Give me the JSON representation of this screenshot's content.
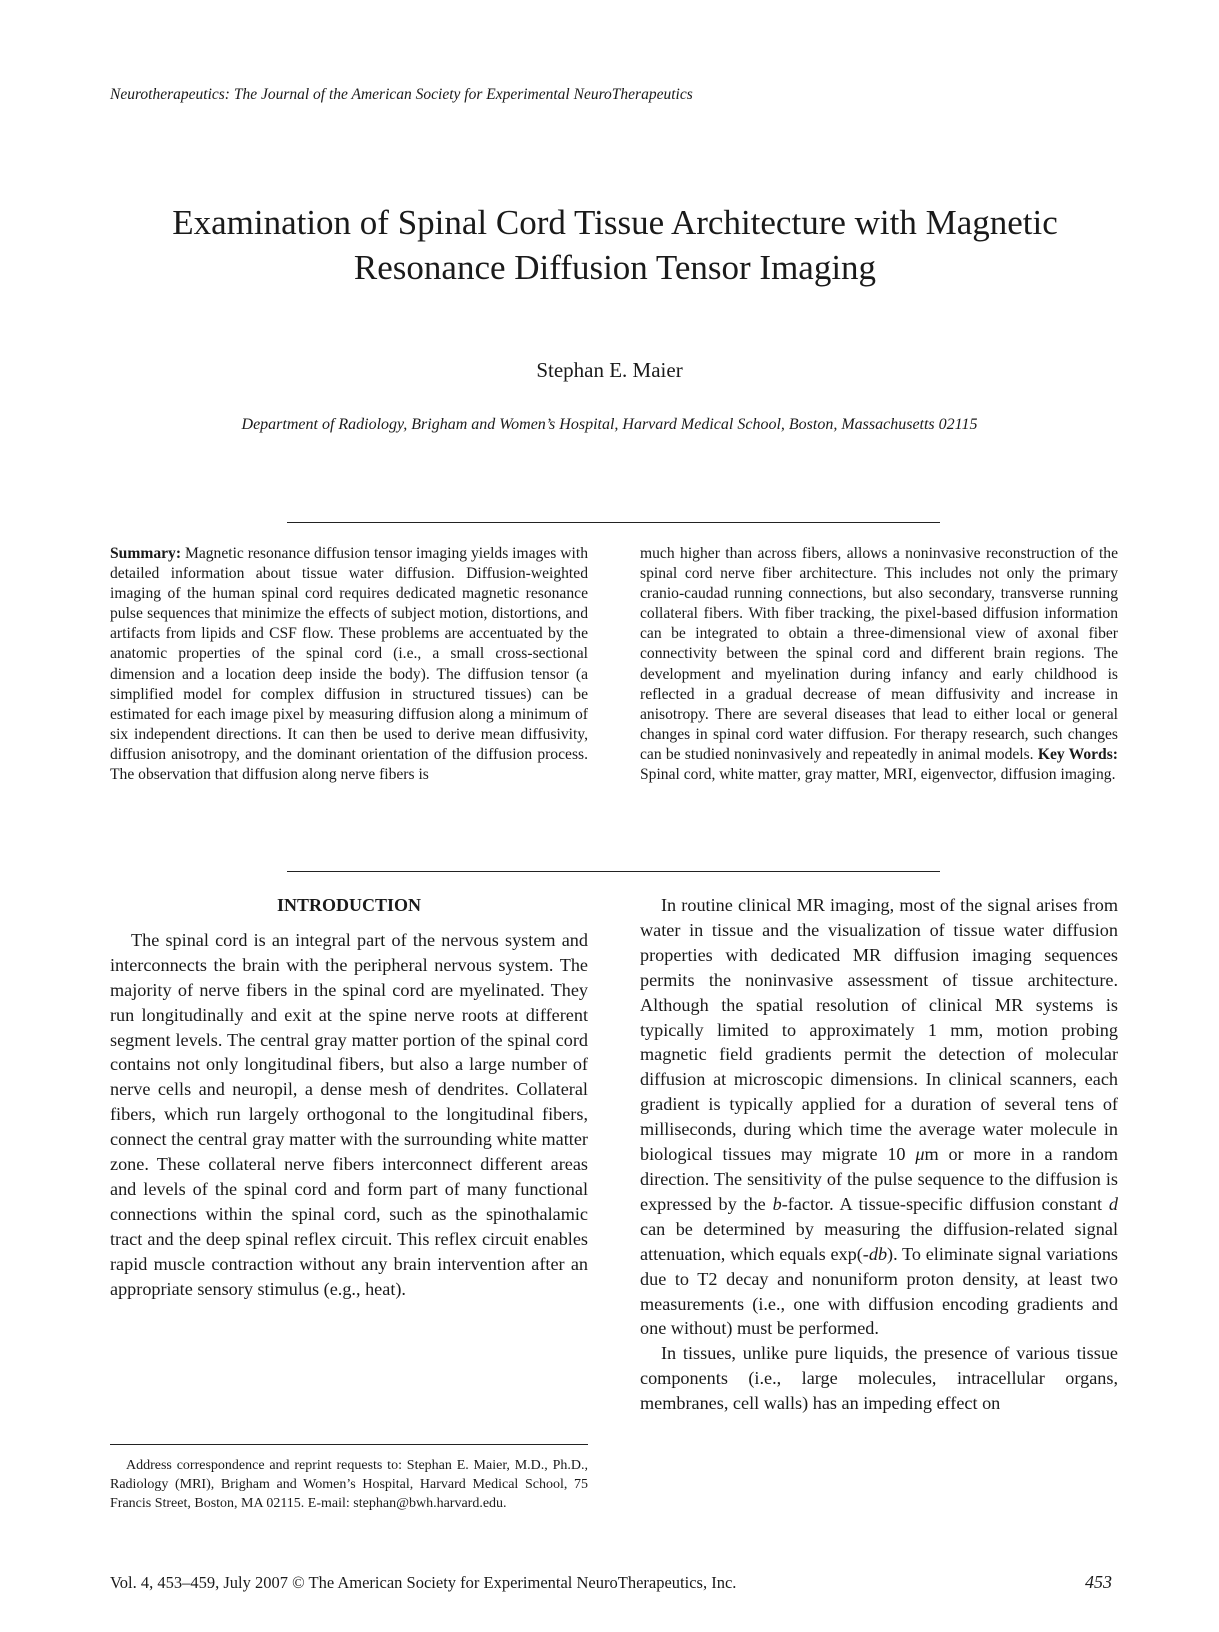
{
  "running_head": "Neurotherapeutics: The Journal of the American Society for Experimental NeuroTherapeutics",
  "title_line1": "Examination of Spinal Cord Tissue Architecture with Magnetic",
  "title_line2": "Resonance Diffusion Tensor Imaging",
  "author": "Stephan E. Maier",
  "affiliation": "Department of Radiology, Brigham and Women’s Hospital, Harvard Medical School, Boston, Massachusetts 02115",
  "summary": {
    "label": "Summary:",
    "text_col1": "Magnetic resonance diffusion tensor imaging yields images with detailed information about tissue water diffusion. Diffusion-weighted imaging of the human spinal cord requires dedicated magnetic resonance pulse sequences that minimize the effects of subject motion, distortions, and artifacts from lipids and CSF flow. These problems are accentuated by the anatomic properties of the spinal cord (i.e., a small cross-sectional dimension and a location deep inside the body). The diffusion tensor (a simplified model for complex diffusion in structured tissues) can be estimated for each image pixel by measuring diffusion along a minimum of six independent directions. It can then be used to derive mean diffusivity, diffusion anisotropy, and the dominant orientation of the diffusion process. The observation that diffusion along nerve fibers is",
    "text_col2": "much higher than across fibers, allows a noninvasive reconstruction of the spinal cord nerve fiber architecture. This includes not only the primary cranio-caudad running connections, but also secondary, transverse running collateral fibers. With fiber tracking, the pixel-based diffusion information can be integrated to obtain a three-dimensional view of axonal fiber connectivity between the spinal cord and different brain regions. The development and myelination during infancy and early childhood is reflected in a gradual decrease of mean diffusivity and increase in anisotropy. There are several diseases that lead to either local or general changes in spinal cord water diffusion. For therapy research, such changes can be studied noninvasively and repeatedly in animal models.",
    "keywords_label": "Key Words:",
    "keywords": "Spinal cord, white matter, gray matter, MRI, eigenvector, diffusion imaging."
  },
  "introduction": {
    "heading": "INTRODUCTION",
    "p1": "The spinal cord is an integral part of the nervous system and interconnects the brain with the peripheral nervous system. The majority of nerve fibers in the spinal cord are myelinated. They run longitudinally and exit at the spine nerve roots at different segment levels. The central gray matter portion of the spinal cord contains not only longitudinal fibers, but also a large number of nerve cells and neuropil, a dense mesh of dendrites. Collateral fibers, which run largely orthogonal to the longitudinal fibers, connect the central gray matter with the surrounding white matter zone. These collateral nerve fibers interconnect different areas and levels of the spinal cord and form part of many functional connections within the spinal cord, such as the spinothalamic tract and the deep spinal reflex circuit. This reflex circuit enables rapid muscle contraction without any brain intervention after an appropriate sensory stimulus (e.g., heat).",
    "p2_a": "In routine clinical MR imaging, most of the signal arises from water in tissue and the visualization of tissue water diffusion properties with dedicated MR diffusion imaging sequences permits the noninvasive assessment of tissue architecture. Although the spatial resolution of clinical MR systems is typically limited to approximately 1 mm, motion probing magnetic field gradients permit the detection of molecular diffusion at microscopic dimensions. In clinical scanners, each gradient is typically applied for a duration of several tens of milliseconds, during which time the average water molecule in biological tissues may migrate 10 ",
    "p2_mu": "μ",
    "p2_b": "m or more in a random direction. The sensitivity of the pulse sequence to the diffusion is expressed by the ",
    "p2_bvar": "b",
    "p2_c": "-factor. A tissue-specific diffusion constant ",
    "p2_dvar": "d",
    "p2_d": " can be determined by measuring the diffusion-related signal attenuation, which equals exp(-",
    "p2_db": "db",
    "p2_e": "). To eliminate signal variations due to T2 decay and nonuniform proton density, at least two measurements (i.e., one with diffusion encoding gradients and one without) must be performed.",
    "p3": "In tissues, unlike pure liquids, the presence of various tissue components (i.e., large molecules, intracellular organs, membranes, cell walls) has an impeding effect on"
  },
  "footnote": "Address correspondence and reprint requests to: Stephan E. Maier, M.D., Ph.D., Radiology (MRI), Brigham and Women’s Hospital, Harvard Medical School, 75 Francis Street, Boston, MA 02115. E-mail: stephan@bwh.harvard.edu.",
  "footer": "Vol. 4, 453–459, July 2007 © The American Society for Experimental NeuroTherapeutics, Inc.",
  "page_number": "453"
}
